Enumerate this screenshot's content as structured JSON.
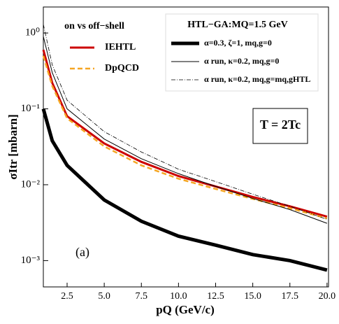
{
  "chart_data": {
    "type": "line",
    "xlabel": "pQ (GeV/c)",
    "ylabel": "σItr [mbarn]",
    "xlim": [
      0.9,
      20.1
    ],
    "ylim": [
      0.00045,
      2.2
    ],
    "log_y": true,
    "xticks": [
      2.5,
      {
        "value": 5,
        "label": "5.0"
      },
      7.5,
      {
        "value": 10,
        "label": "10.0"
      },
      12.5,
      {
        "value": 15,
        "label": "15.0"
      },
      17.5,
      {
        "value": 20,
        "label": "20.0"
      }
    ],
    "yticks": [
      {
        "value": 0.001,
        "label": "10⁻³"
      },
      {
        "value": 0.01,
        "label": "10⁻²"
      },
      {
        "value": 0.1,
        "label": "10⁻¹"
      },
      {
        "value": 1,
        "label": "10⁰"
      }
    ],
    "x": [
      0.9,
      1.5,
      2.5,
      5,
      7.5,
      10,
      12.5,
      15,
      17.5,
      20
    ],
    "legend_titles": {
      "top-left": "on vs off−shell",
      "top-right": "HTL−GA:MQ=1.5 GeV"
    },
    "series": [
      {
        "name": "IEHTL",
        "color": "#cc0000",
        "line_width": 3,
        "dash": "solid",
        "legend": "top-left",
        "values": [
          0.6,
          0.22,
          0.08,
          0.035,
          0.02,
          0.013,
          0.0095,
          0.0069,
          0.0052,
          0.0038
        ]
      },
      {
        "name": "DpQCD",
        "color": "#f5a623",
        "line_width": 2.5,
        "dash": "dashed",
        "legend": "top-left",
        "values": [
          0.5,
          0.2,
          0.075,
          0.032,
          0.018,
          0.012,
          0.0088,
          0.0065,
          0.0049,
          0.0036
        ]
      },
      {
        "name": "α=0.3, ζ=1, mq,g=0",
        "color": "#000000",
        "line_width": 5,
        "dash": "solid",
        "legend": "top-right",
        "values": [
          0.1,
          0.038,
          0.018,
          0.0063,
          0.0033,
          0.0021,
          0.0016,
          0.0012,
          0.001,
          0.00075
        ]
      },
      {
        "name": "α run, κ=0.2, mq,g=0",
        "color": "#000000",
        "line_width": 1,
        "dash": "solid",
        "legend": "top-right",
        "values": [
          0.9,
          0.3,
          0.1,
          0.04,
          0.022,
          0.014,
          0.0095,
          0.0066,
          0.0047,
          0.0031
        ]
      },
      {
        "name": "α run, κ=0.2, mq,g=mq,gHTL",
        "color": "#000000",
        "line_width": 0.8,
        "dash": "dashdot",
        "legend": "top-right",
        "values": [
          1.3,
          0.38,
          0.13,
          0.05,
          0.027,
          0.016,
          0.011,
          0.0075,
          0.0052,
          0.0035
        ]
      }
    ],
    "annotations": [
      "T = 2Tc",
      "(a)"
    ]
  }
}
